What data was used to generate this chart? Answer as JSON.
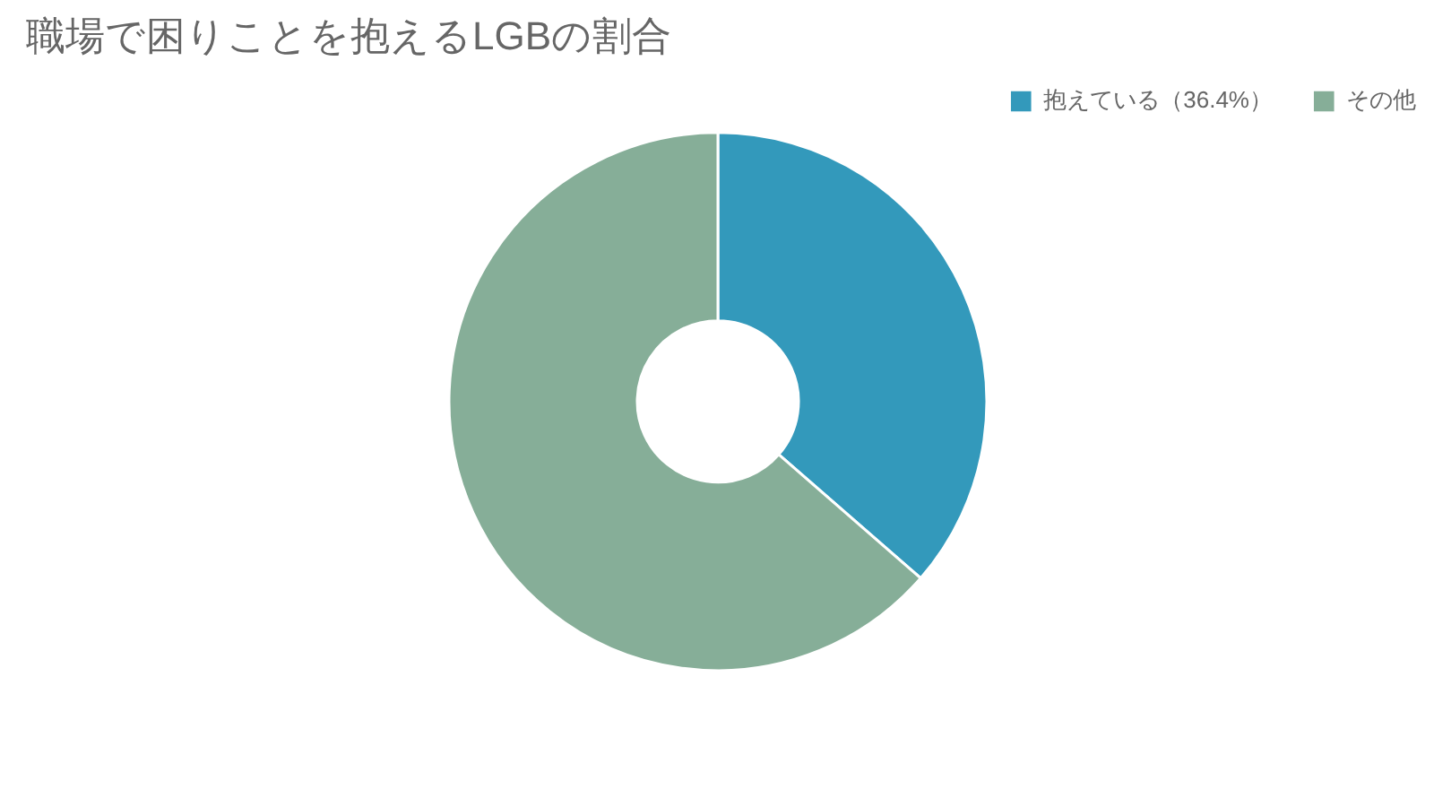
{
  "chart_data": {
    "type": "donut",
    "title": "職場で困りことを抱えるLGBの割合",
    "categories": [
      "抱えている（36.4%）",
      "その他"
    ],
    "values": [
      36.4,
      63.6
    ],
    "colors": [
      "#3399bb",
      "#86ae98"
    ],
    "legend": "top right"
  }
}
